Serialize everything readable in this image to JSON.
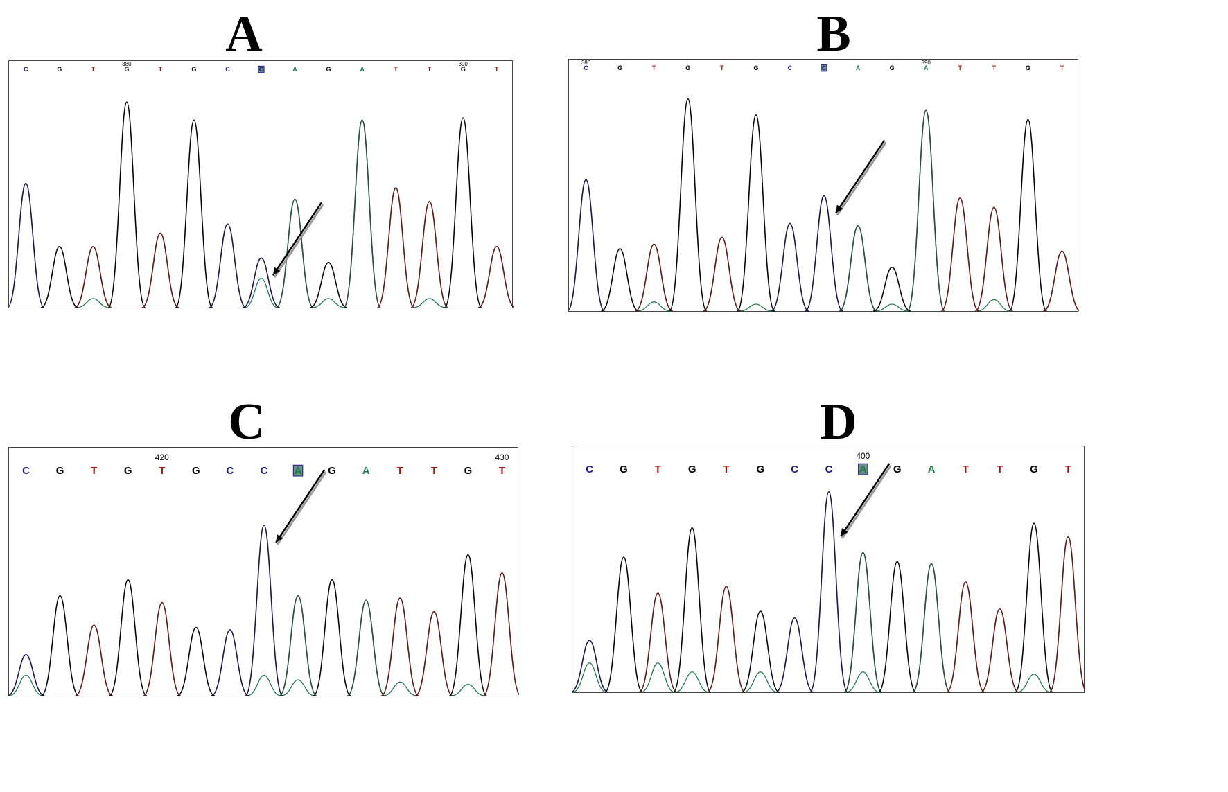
{
  "colors": {
    "A": "#1a1a80",
    "C": "#1a1a80",
    "G": "#000000",
    "T": "#aa1111",
    "Aalt": "#1f7a4a",
    "bg": "#ffffff"
  },
  "chart_data": [
    {
      "type": "line",
      "panel": "A",
      "label": "A",
      "bases": [
        "C",
        "G",
        "T",
        "G",
        "T",
        "G",
        "C",
        "C",
        "A",
        "G",
        "A",
        "T",
        "T",
        "G",
        "T"
      ],
      "boxed_index": 7,
      "position_labels": [
        {
          "index": 3,
          "text": "380"
        },
        {
          "index": 13,
          "text": "390"
        }
      ],
      "peaks": [
        {
          "base": "C",
          "height": 0.55
        },
        {
          "base": "G",
          "height": 0.27
        },
        {
          "base": "T",
          "height": 0.27
        },
        {
          "base": "G",
          "height": 0.91
        },
        {
          "base": "T",
          "height": 0.33
        },
        {
          "base": "G",
          "height": 0.83
        },
        {
          "base": "C",
          "height": 0.37
        },
        {
          "base": "C",
          "height": 0.22
        },
        {
          "base": "A",
          "height": 0.48
        },
        {
          "base": "G",
          "height": 0.2
        },
        {
          "base": "A",
          "height": 0.83
        },
        {
          "base": "T",
          "height": 0.53
        },
        {
          "base": "T",
          "height": 0.47
        },
        {
          "base": "G",
          "height": 0.84
        },
        {
          "base": "T",
          "height": 0.27
        }
      ],
      "secondary": [
        {
          "index": 2,
          "height": 0.04
        },
        {
          "index": 7,
          "height": 0.13
        },
        {
          "index": 9,
          "height": 0.04
        },
        {
          "index": 12,
          "height": 0.04
        }
      ],
      "arrow_index": 7
    },
    {
      "type": "line",
      "panel": "B",
      "label": "B",
      "bases": [
        "C",
        "G",
        "T",
        "G",
        "T",
        "G",
        "C",
        "C",
        "A",
        "G",
        "A",
        "T",
        "T",
        "G",
        "T"
      ],
      "boxed_index": 7,
      "position_labels": [
        {
          "index": 0,
          "text": "380"
        },
        {
          "index": 10,
          "text": "390"
        }
      ],
      "peaks": [
        {
          "base": "C",
          "height": 0.57
        },
        {
          "base": "G",
          "height": 0.27
        },
        {
          "base": "T",
          "height": 0.29
        },
        {
          "base": "G",
          "height": 0.92
        },
        {
          "base": "T",
          "height": 0.32
        },
        {
          "base": "G",
          "height": 0.85
        },
        {
          "base": "C",
          "height": 0.38
        },
        {
          "base": "C",
          "height": 0.5
        },
        {
          "base": "A",
          "height": 0.37
        },
        {
          "base": "G",
          "height": 0.19
        },
        {
          "base": "A",
          "height": 0.87
        },
        {
          "base": "T",
          "height": 0.49
        },
        {
          "base": "T",
          "height": 0.45
        },
        {
          "base": "G",
          "height": 0.83
        },
        {
          "base": "T",
          "height": 0.26
        }
      ],
      "secondary": [
        {
          "index": 2,
          "height": 0.04
        },
        {
          "index": 5,
          "height": 0.03
        },
        {
          "index": 9,
          "height": 0.03
        },
        {
          "index": 12,
          "height": 0.05
        }
      ],
      "arrow_index": 7
    },
    {
      "type": "line",
      "panel": "C",
      "label": "C",
      "bases": [
        "C",
        "G",
        "T",
        "G",
        "T",
        "G",
        "C",
        "C",
        "A",
        "G",
        "A",
        "T",
        "T",
        "G",
        "T"
      ],
      "boxed_index": 8,
      "position_labels": [
        {
          "index": 4,
          "text": "420"
        },
        {
          "index": 14,
          "text": "430"
        }
      ],
      "peaks": [
        {
          "base": "C",
          "height": 0.18
        },
        {
          "base": "G",
          "height": 0.44
        },
        {
          "base": "T",
          "height": 0.31
        },
        {
          "base": "G",
          "height": 0.51
        },
        {
          "base": "T",
          "height": 0.41
        },
        {
          "base": "G",
          "height": 0.3
        },
        {
          "base": "C",
          "height": 0.29
        },
        {
          "base": "C",
          "height": 0.75
        },
        {
          "base": "A",
          "height": 0.44
        },
        {
          "base": "G",
          "height": 0.51
        },
        {
          "base": "A",
          "height": 0.42
        },
        {
          "base": "T",
          "height": 0.43
        },
        {
          "base": "T",
          "height": 0.37
        },
        {
          "base": "G",
          "height": 0.62
        },
        {
          "base": "T",
          "height": 0.54
        }
      ],
      "secondary": [
        {
          "index": 0,
          "height": 0.09
        },
        {
          "index": 7,
          "height": 0.09
        },
        {
          "index": 8,
          "height": 0.07
        },
        {
          "index": 11,
          "height": 0.06
        },
        {
          "index": 13,
          "height": 0.05
        }
      ],
      "arrow_index": 7
    },
    {
      "type": "line",
      "panel": "D",
      "label": "D",
      "bases": [
        "C",
        "G",
        "T",
        "G",
        "T",
        "G",
        "C",
        "C",
        "A",
        "G",
        "A",
        "T",
        "T",
        "G",
        "T"
      ],
      "boxed_index": 8,
      "position_labels": [
        {
          "index": 8,
          "text": "400"
        }
      ],
      "peaks": [
        {
          "base": "C",
          "height": 0.23
        },
        {
          "base": "G",
          "height": 0.6
        },
        {
          "base": "T",
          "height": 0.44
        },
        {
          "base": "G",
          "height": 0.73
        },
        {
          "base": "T",
          "height": 0.47
        },
        {
          "base": "G",
          "height": 0.36
        },
        {
          "base": "C",
          "height": 0.33
        },
        {
          "base": "C",
          "height": 0.89
        },
        {
          "base": "A",
          "height": 0.62
        },
        {
          "base": "G",
          "height": 0.58
        },
        {
          "base": "A",
          "height": 0.57
        },
        {
          "base": "T",
          "height": 0.49
        },
        {
          "base": "T",
          "height": 0.37
        },
        {
          "base": "G",
          "height": 0.75
        },
        {
          "base": "T",
          "height": 0.69
        }
      ],
      "secondary": [
        {
          "index": 0,
          "height": 0.13
        },
        {
          "index": 2,
          "height": 0.13
        },
        {
          "index": 3,
          "height": 0.09
        },
        {
          "index": 5,
          "height": 0.09
        },
        {
          "index": 8,
          "height": 0.09
        },
        {
          "index": 13,
          "height": 0.08
        }
      ],
      "arrow_index": 7
    }
  ]
}
